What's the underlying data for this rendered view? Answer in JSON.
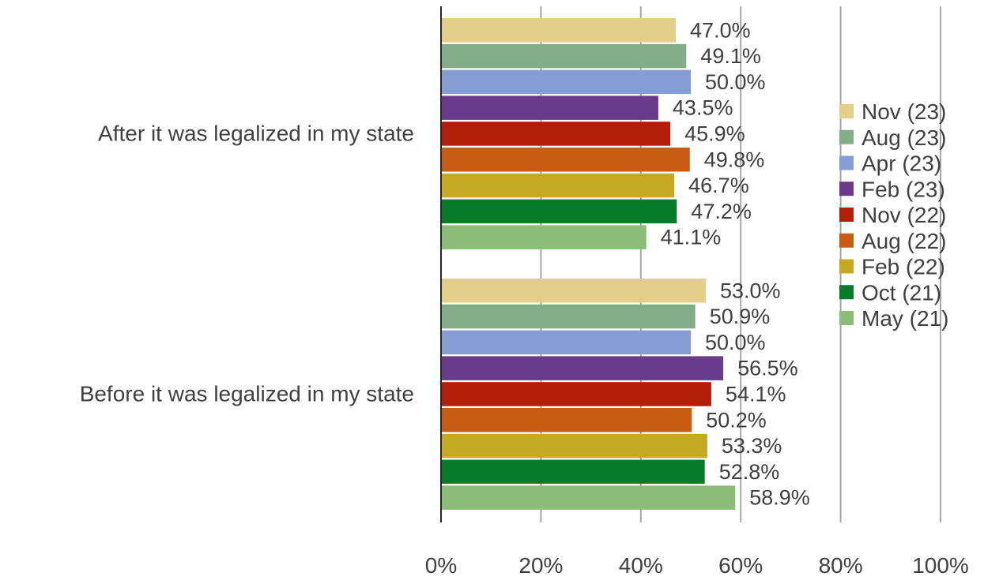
{
  "chart_data": {
    "type": "bar",
    "orientation": "horizontal",
    "categories": [
      "After it was legalized in my state",
      "Before it was legalized in my state"
    ],
    "series": [
      {
        "name": "Nov (23)",
        "color": "#e3cf8a",
        "values": [
          47.0,
          53.0
        ],
        "labels": [
          "47.0%",
          "53.0%"
        ]
      },
      {
        "name": "Aug (23)",
        "color": "#83ad87",
        "values": [
          49.1,
          50.9
        ],
        "labels": [
          "49.1%",
          "50.9%"
        ]
      },
      {
        "name": "Apr (23)",
        "color": "#869cd4",
        "values": [
          50.0,
          50.0
        ],
        "labels": [
          "50.0%",
          "50.0%"
        ]
      },
      {
        "name": "Feb (23)",
        "color": "#6a3a8c",
        "values": [
          43.5,
          56.5
        ],
        "labels": [
          "43.5%",
          "56.5%"
        ]
      },
      {
        "name": "Nov (22)",
        "color": "#b31e0a",
        "values": [
          45.9,
          54.1
        ],
        "labels": [
          "45.9%",
          "54.1%"
        ]
      },
      {
        "name": "Aug (22)",
        "color": "#c75c12",
        "values": [
          49.8,
          50.2
        ],
        "labels": [
          "49.8%",
          "50.2%"
        ]
      },
      {
        "name": "Feb (22)",
        "color": "#c6a922",
        "values": [
          46.7,
          53.3
        ],
        "labels": [
          "46.7%",
          "53.3%"
        ]
      },
      {
        "name": "Oct (21)",
        "color": "#067b2a",
        "values": [
          47.2,
          52.8
        ],
        "labels": [
          "47.2%",
          "52.8%"
        ]
      },
      {
        "name": "May (21)",
        "color": "#8cbd78",
        "values": [
          41.1,
          58.9
        ],
        "labels": [
          "41.1%",
          "58.9%"
        ]
      }
    ],
    "x_ticks": [
      "0%",
      "20%",
      "40%",
      "60%",
      "80%",
      "100%"
    ],
    "xlim": [
      0,
      100
    ],
    "grid": true,
    "legend_position": "right",
    "gridline_color": "#a6a6a6",
    "axis_color": "#262626"
  }
}
